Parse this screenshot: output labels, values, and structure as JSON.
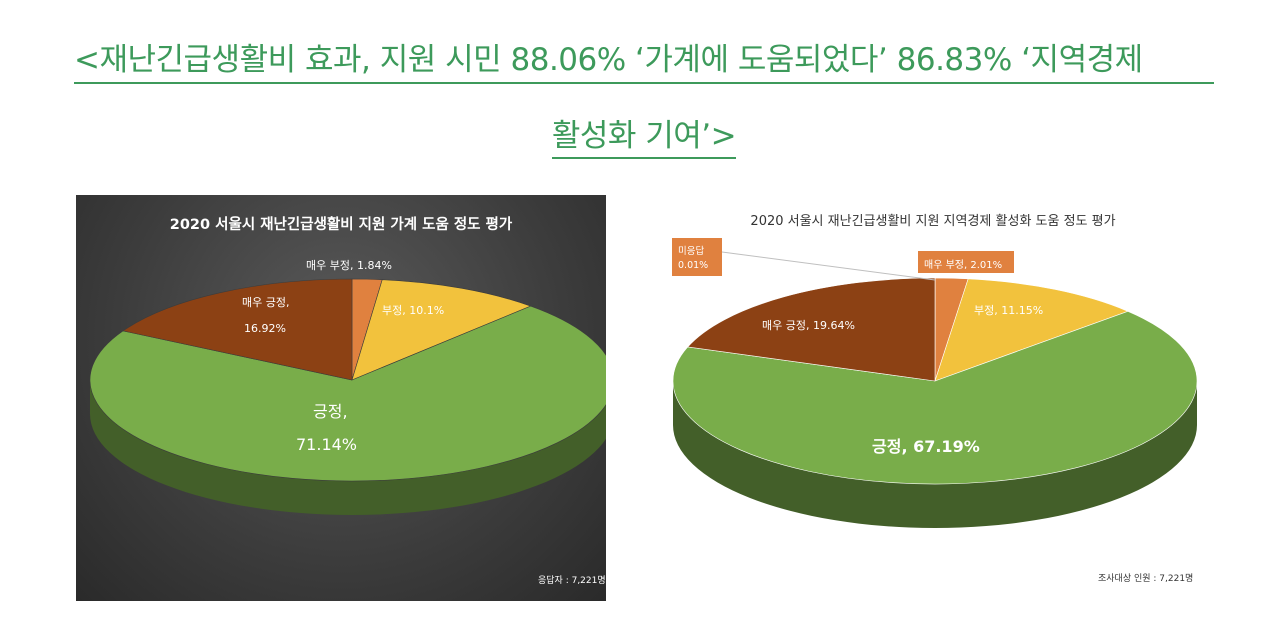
{
  "headline": {
    "line1": "<재난긴급생활비 효과, 지원 시민 88.06% ‘가계에 도움되었다’ 86.83% ‘지역경제",
    "line2": "활성화 기여’>"
  },
  "colors": {
    "headline": "#3d9a5b",
    "very_negative": "#e0813f",
    "negative": "#f2c23d",
    "positive": "#79ad4a",
    "very_positive": "#8c4114",
    "no_answer": "#e0813f"
  },
  "charts": [
    {
      "title": "2020 서울시 재난긴급생활비 지원 가계 도움 정도 평가",
      "note": "응답자 : 7,221명",
      "labels": {
        "very_negative": "매우 부정, 1.84%",
        "negative": "부정, 10.1%",
        "positive_name": "긍정,",
        "positive_value": "71.14%",
        "very_positive_name": "매우 긍정,",
        "very_positive_value": "16.92%"
      }
    },
    {
      "title": "2020 서울시 재난긴급생활비 지원 지역경제 활성화 도움 정도 평가",
      "note": "조사대상 인원 : 7,221명",
      "labels": {
        "no_answer_name": "미응답",
        "no_answer_value": "0.01%",
        "very_negative": "매우 부정, 2.01%",
        "negative": "부정, 11.15%",
        "positive": "긍정, 67.19%",
        "very_positive": "매우 긍정, 19.64%"
      }
    }
  ],
  "chart_data": [
    {
      "type": "pie",
      "title": "2020 서울시 재난긴급생활비 지원 가계 도움 정도 평가",
      "categories": [
        "매우 부정",
        "부정",
        "긍정",
        "매우 긍정"
      ],
      "values": [
        1.84,
        10.1,
        71.14,
        16.92
      ],
      "colors": [
        "#e0813f",
        "#f2c23d",
        "#79ad4a",
        "#8c4114"
      ],
      "style": "3d"
    },
    {
      "type": "pie",
      "title": "2020 서울시 재난긴급생활비 지원 지역경제 활성화 도움 정도 평가",
      "categories": [
        "미응답",
        "매우 부정",
        "부정",
        "긍정",
        "매우 긍정"
      ],
      "values": [
        0.01,
        2.01,
        11.15,
        67.19,
        19.64
      ],
      "colors": [
        "#e0813f",
        "#e0813f",
        "#f2c23d",
        "#79ad4a",
        "#8c4114"
      ],
      "style": "3d"
    }
  ]
}
